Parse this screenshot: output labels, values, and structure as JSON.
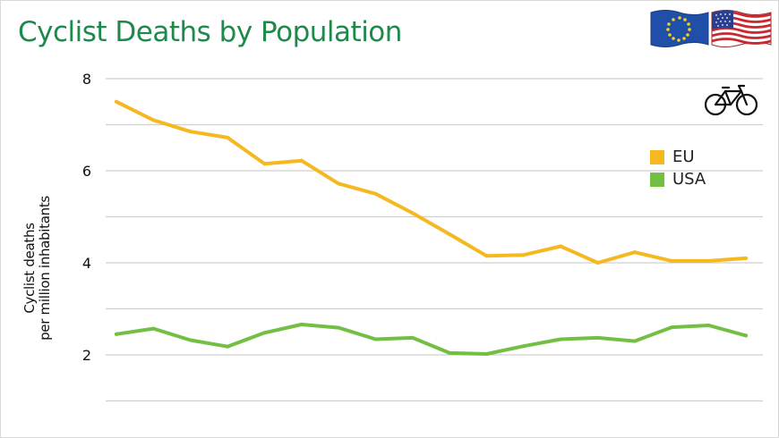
{
  "title": "Cyclist Deaths by Population",
  "flags": [
    "eu-flag-icon",
    "us-flag-icon"
  ],
  "bike_icon": "bicycle-icon",
  "colors": {
    "title": "#1d8a4c",
    "eu": "#f5b820",
    "usa": "#72bf44",
    "grid": "#cfcfcf"
  },
  "chart_data": {
    "type": "line",
    "title": "Cyclist Deaths by Population",
    "xlabel": "",
    "ylabel": [
      "Cyclist deaths",
      "per million inhabitants"
    ],
    "ylim": [
      0,
      8
    ],
    "yticks": [
      2,
      4,
      6,
      8
    ],
    "grid": true,
    "legend_position": "top-right",
    "x": [
      1,
      2,
      3,
      4,
      5,
      6,
      7,
      8,
      9,
      10,
      11,
      12,
      13,
      14,
      15,
      16,
      17,
      18
    ],
    "series": [
      {
        "name": "EU",
        "color": "#f5b820",
        "values": [
          7.5,
          7.1,
          6.85,
          6.72,
          6.15,
          6.22,
          5.72,
          5.5,
          5.08,
          4.62,
          4.15,
          4.17,
          4.36,
          4.0,
          4.23,
          4.04,
          4.04,
          4.1
        ]
      },
      {
        "name": "USA",
        "color": "#72bf44",
        "values": [
          2.45,
          2.57,
          2.32,
          2.18,
          2.48,
          2.66,
          2.59,
          2.34,
          2.37,
          2.04,
          2.02,
          2.19,
          2.34,
          2.37,
          2.3,
          2.6,
          2.64,
          2.42
        ]
      }
    ]
  }
}
